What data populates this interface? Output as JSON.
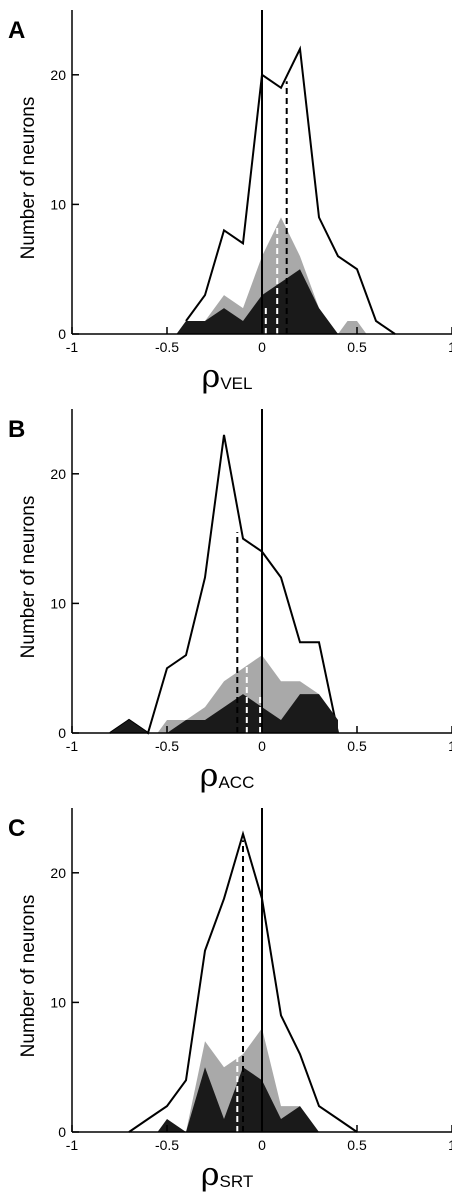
{
  "chart_data": [
    {
      "type": "area",
      "panel_label": "A",
      "ylabel": "Number of neurons",
      "xlabel_symbol": "ρ",
      "xlabel_subscript": "VEL",
      "xlim": [
        -1,
        1
      ],
      "ylim": [
        0,
        25
      ],
      "xticks": [
        -1,
        -0.5,
        0,
        0.5,
        1
      ],
      "xtick_labels": [
        "-1",
        "-0.5",
        "0",
        "0.5",
        "1"
      ],
      "yticks": [
        0,
        10,
        20
      ],
      "ytick_labels": [
        "0",
        "10",
        "20"
      ],
      "series": [
        {
          "style": "outline",
          "color": "#000000",
          "x": [
            -0.4,
            -0.3,
            -0.2,
            -0.1,
            0,
            0.1,
            0.2,
            0.3,
            0.4,
            0.5,
            0.6,
            0.7
          ],
          "values": [
            1,
            3,
            8,
            7,
            20,
            19,
            22,
            9,
            6,
            5,
            1,
            0
          ]
        },
        {
          "style": "fill",
          "color": "#a9a9a9",
          "x": [
            -0.45,
            -0.4,
            -0.3,
            -0.2,
            -0.1,
            0,
            0.1,
            0.2,
            0.3,
            0.4,
            0.45,
            0.5,
            0.55
          ],
          "values": [
            0,
            1,
            1,
            3,
            2,
            6,
            9,
            6,
            2,
            0,
            1,
            1,
            0
          ]
        },
        {
          "style": "fill",
          "color": "#1a1a1a",
          "x": [
            -0.45,
            -0.4,
            -0.3,
            -0.2,
            -0.1,
            0,
            0.1,
            0.2,
            0.3,
            0.4
          ],
          "values": [
            0,
            1,
            1,
            2,
            1,
            3,
            4,
            5,
            2,
            0
          ]
        }
      ],
      "reference_lines": [
        {
          "x": 0,
          "ymax": 25,
          "style": "solid",
          "color": "#000000"
        },
        {
          "x": 0.13,
          "ymax": 19.5,
          "style": "dashed",
          "color": "#000000"
        },
        {
          "x": 0.02,
          "ymax": 2.3,
          "style": "dashed",
          "color": "#ffffff"
        },
        {
          "x": 0.08,
          "ymax": 9,
          "style": "dashed",
          "color": "#ffffff"
        }
      ]
    },
    {
      "type": "area",
      "panel_label": "B",
      "ylabel": "Number of neurons",
      "xlabel_symbol": "ρ",
      "xlabel_subscript": "ACC",
      "xlim": [
        -1,
        1
      ],
      "ylim": [
        0,
        25
      ],
      "xticks": [
        -1,
        -0.5,
        0,
        0.5,
        1
      ],
      "xtick_labels": [
        "-1",
        "-0.5",
        "0",
        "0.5",
        "1"
      ],
      "yticks": [
        0,
        10,
        20
      ],
      "ytick_labels": [
        "0",
        "10",
        "20"
      ],
      "series": [
        {
          "style": "outline",
          "color": "#000000",
          "x": [
            -0.8,
            -0.7,
            -0.6,
            -0.5,
            -0.4,
            -0.3,
            -0.2,
            -0.1,
            0,
            0.1,
            0.2,
            0.3,
            0.4
          ],
          "values": [
            0,
            1,
            0,
            5,
            6,
            12,
            23,
            15,
            14,
            12,
            7,
            7,
            0
          ]
        },
        {
          "style": "fill",
          "color": "#a9a9a9",
          "x": [
            -0.55,
            -0.5,
            -0.4,
            -0.3,
            -0.2,
            -0.1,
            0,
            0.1,
            0.2,
            0.3,
            0.4
          ],
          "values": [
            0,
            1,
            1,
            2,
            4,
            5,
            6,
            4,
            4,
            3,
            0
          ]
        },
        {
          "style": "fill",
          "color": "#1a1a1a",
          "x": [
            -0.8,
            -0.7,
            -0.6,
            -0.5,
            -0.4,
            -0.3,
            -0.2,
            -0.1,
            0,
            0.1,
            0.2,
            0.3,
            0.4
          ],
          "values": [
            0,
            1,
            0,
            0,
            1,
            1,
            2,
            3,
            2,
            1,
            3,
            3,
            1
          ]
        }
      ],
      "reference_lines": [
        {
          "x": 0,
          "ymax": 25,
          "style": "solid",
          "color": "#000000"
        },
        {
          "x": -0.13,
          "ymax": 15.5,
          "style": "dashed",
          "color": "#000000"
        },
        {
          "x": -0.08,
          "ymax": 5.3,
          "style": "dashed",
          "color": "#ffffff"
        },
        {
          "x": -0.01,
          "ymax": 3,
          "style": "dashed",
          "color": "#ffffff"
        }
      ]
    },
    {
      "type": "area",
      "panel_label": "C",
      "ylabel": "Number of neurons",
      "xlabel_symbol": "ρ",
      "xlabel_subscript": "SRT",
      "xlim": [
        -1,
        1
      ],
      "ylim": [
        0,
        25
      ],
      "xticks": [
        -1,
        -0.5,
        0,
        0.5,
        1
      ],
      "xtick_labels": [
        "-1",
        "-0.5",
        "0",
        "0.5",
        "1"
      ],
      "yticks": [
        0,
        10,
        20
      ],
      "ytick_labels": [
        "0",
        "10",
        "20"
      ],
      "series": [
        {
          "style": "outline",
          "color": "#000000",
          "x": [
            -0.7,
            -0.6,
            -0.5,
            -0.4,
            -0.3,
            -0.2,
            -0.1,
            0,
            0.1,
            0.2,
            0.3,
            0.4,
            0.5
          ],
          "values": [
            0,
            1,
            2,
            4,
            14,
            18,
            23,
            18,
            9,
            6,
            2,
            1,
            0
          ]
        },
        {
          "style": "fill",
          "color": "#a9a9a9",
          "x": [
            -0.4,
            -0.3,
            -0.2,
            -0.1,
            0,
            0.1,
            0.2,
            0.25
          ],
          "values": [
            0,
            7,
            5,
            6,
            8,
            2,
            2,
            0
          ]
        },
        {
          "style": "fill",
          "color": "#1a1a1a",
          "x": [
            -0.55,
            -0.5,
            -0.4,
            -0.3,
            -0.2,
            -0.1,
            0,
            0.1,
            0.2,
            0.3
          ],
          "values": [
            0,
            1,
            0,
            5,
            1,
            5,
            4,
            1,
            2,
            0
          ]
        }
      ],
      "reference_lines": [
        {
          "x": 0,
          "ymax": 25,
          "style": "solid",
          "color": "#000000"
        },
        {
          "x": -0.1,
          "ymax": 22.5,
          "style": "dashed",
          "color": "#000000"
        },
        {
          "x": -0.13,
          "ymax": 7,
          "style": "dashed",
          "color": "#ffffff"
        }
      ]
    }
  ]
}
